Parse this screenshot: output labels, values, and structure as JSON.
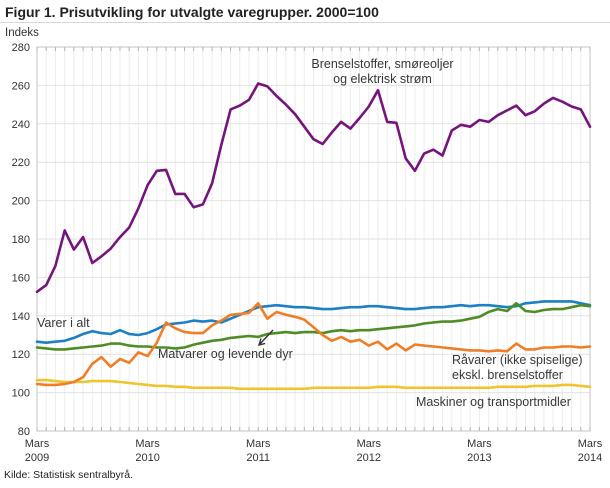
{
  "title": "Figur 1. Prisutvikling for utvalgte varegrupper. 2000=100",
  "y_axis_label": "Indeks",
  "source": "Kilde: Statistisk sentralbyrå.",
  "annotations": {
    "fuel_line1": "Brenselstoffer, smøreoljer",
    "fuel_line2": "og elektrisk strøm",
    "varer": "Varer i alt",
    "matvarer": "Matvarer og levende dyr",
    "ravarer_line1": "Råvarer (ikke spiselige)",
    "ravarer_line2": "ekskl. brenselstoffer",
    "maskiner": "Maskiner og transportmidler"
  },
  "chart_data": {
    "type": "line",
    "x_unit": "month",
    "x_start": "Mars 2009",
    "x_end": "Mars 2014",
    "ylim": [
      80,
      280
    ],
    "ytick_step": 20,
    "grid": true,
    "legend_position": "inline-labels",
    "xticks": [
      {
        "month": "Mars",
        "year": "2009"
      },
      {
        "month": "Mars",
        "year": "2010"
      },
      {
        "month": "Mars",
        "year": "2011"
      },
      {
        "month": "Mars",
        "year": "2012"
      },
      {
        "month": "Mars",
        "year": "2013"
      },
      {
        "month": "Mars",
        "year": "2014"
      }
    ],
    "series": [
      {
        "name": "Varer i alt",
        "color": "#1d80c4",
        "values": [
          126.5,
          126,
          126.5,
          127,
          128.5,
          130.5,
          132,
          131,
          130.5,
          132.5,
          130.5,
          130,
          131,
          133,
          135.5,
          136,
          136.5,
          137.5,
          137,
          137.5,
          136.5,
          138.5,
          140.5,
          142.5,
          144.5,
          145,
          145.5,
          145,
          144.5,
          144.5,
          144,
          143.5,
          143.5,
          144,
          144.5,
          144.5,
          145,
          145,
          144.5,
          144,
          143.5,
          143.5,
          144,
          144.5,
          144.5,
          145,
          145.5,
          145,
          145.5,
          145.5,
          145,
          144.5,
          145,
          146.5,
          147,
          147.5,
          147.5,
          147.5,
          147.5,
          146.5,
          145.5
        ]
      },
      {
        "name": "Maskiner og transportmidler",
        "color": "#eec52f",
        "values": [
          106.5,
          106.5,
          106,
          105.5,
          105.5,
          105.5,
          106,
          106,
          106,
          105.5,
          105,
          104.5,
          104,
          103.5,
          103.5,
          103,
          103,
          102.5,
          102.5,
          102.5,
          102.5,
          102.5,
          102,
          102,
          102,
          102,
          102,
          102,
          102,
          102,
          102.5,
          102.5,
          102.5,
          102.5,
          102.5,
          102.5,
          102.5,
          103,
          103,
          103,
          102.5,
          102.5,
          102.5,
          102.5,
          102.5,
          102.5,
          102.5,
          102.5,
          102.5,
          102.5,
          103,
          103,
          103,
          103,
          103.5,
          103.5,
          103.5,
          104,
          104,
          103.5,
          103
        ]
      },
      {
        "name": "Råvarer (ikke spiselige) ekskl. brenselstoffer",
        "color": "#4e8d25",
        "values": [
          123.5,
          123,
          122.5,
          122.5,
          123,
          123.5,
          124,
          124.5,
          125.5,
          125.5,
          124.5,
          124,
          124,
          123.5,
          123.5,
          123,
          123.5,
          125,
          126,
          127,
          127.5,
          128.5,
          129,
          129.5,
          129,
          130.5,
          131,
          131.5,
          131,
          131.5,
          131.5,
          131,
          132,
          132.5,
          132,
          132.5,
          132.5,
          133,
          133.5,
          134,
          134.5,
          135,
          136,
          136.5,
          137,
          137,
          137.5,
          138.5,
          139.5,
          142,
          143.5,
          142.5,
          146.5,
          142.5,
          142,
          143,
          143.5,
          143.5,
          144.5,
          145.5,
          145
        ]
      },
      {
        "name": "Matvarer og levende dyr",
        "color": "#f07e26",
        "values": [
          104.5,
          104,
          104,
          104.5,
          105.5,
          108,
          115,
          118.5,
          113.5,
          117.5,
          115.5,
          121,
          119,
          126,
          136.5,
          133.5,
          131.5,
          131,
          131,
          135,
          137.5,
          140.5,
          141,
          141.5,
          146.5,
          138.5,
          142,
          140.5,
          139.5,
          138,
          134,
          130,
          127,
          129,
          126.5,
          127.5,
          124.5,
          126.5,
          122.5,
          125.5,
          122,
          125,
          124.5,
          124,
          123.5,
          123,
          122.5,
          122,
          122,
          121.5,
          122,
          121.5,
          125.5,
          122.5,
          122.5,
          123.5,
          123.5,
          124,
          124,
          123.5,
          124
        ]
      },
      {
        "name": "Brenselstoffer, smøreoljer og elektrisk strøm",
        "color": "#75147c",
        "values": [
          152.5,
          156,
          166,
          184.5,
          174.5,
          181,
          167.5,
          171,
          175,
          181,
          186,
          196,
          208,
          215.5,
          216,
          203.5,
          203.5,
          196.5,
          198,
          209,
          229,
          247.5,
          249.5,
          252.5,
          261,
          259.5,
          254.5,
          250,
          245,
          238.5,
          232,
          229.5,
          235.5,
          241,
          237.5,
          243,
          249,
          257.5,
          241,
          240.5,
          222,
          215.5,
          224.5,
          226.5,
          223.5,
          236.5,
          239.5,
          238.5,
          242,
          241,
          244.5,
          247,
          249.5,
          244.5,
          246.5,
          250.5,
          253.5,
          251.5,
          249,
          247.5,
          238.5
        ]
      }
    ]
  }
}
